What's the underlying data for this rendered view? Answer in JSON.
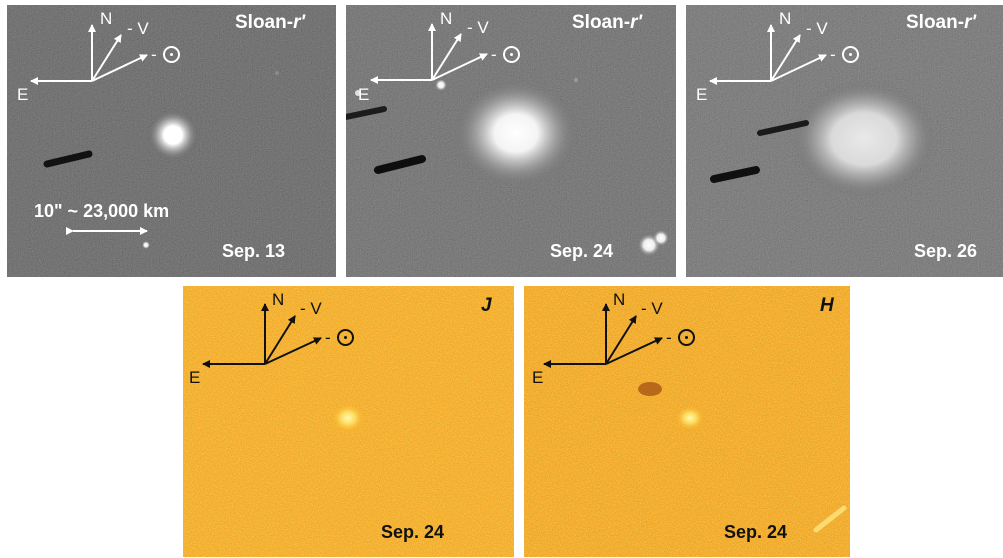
{
  "panels": [
    {
      "id": "p1",
      "filter_prefix": "Sloan-",
      "filter_italic": "r'",
      "date": "Sep. 13",
      "scale_label": "10\" ~ 23,000 km"
    },
    {
      "id": "p2",
      "filter_prefix": "Sloan-",
      "filter_italic": "r'",
      "date": "Sep. 24"
    },
    {
      "id": "p3",
      "filter_prefix": "Sloan-",
      "filter_italic": "r'",
      "date": "Sep. 26"
    },
    {
      "id": "p4",
      "filter_italic": "J",
      "date": "Sep. 24"
    },
    {
      "id": "p5",
      "filter_italic": "H",
      "date": "Sep. 24"
    }
  ],
  "compass": {
    "north": "N",
    "east": "E",
    "velocity": "- V",
    "sun_prefix": "- "
  }
}
